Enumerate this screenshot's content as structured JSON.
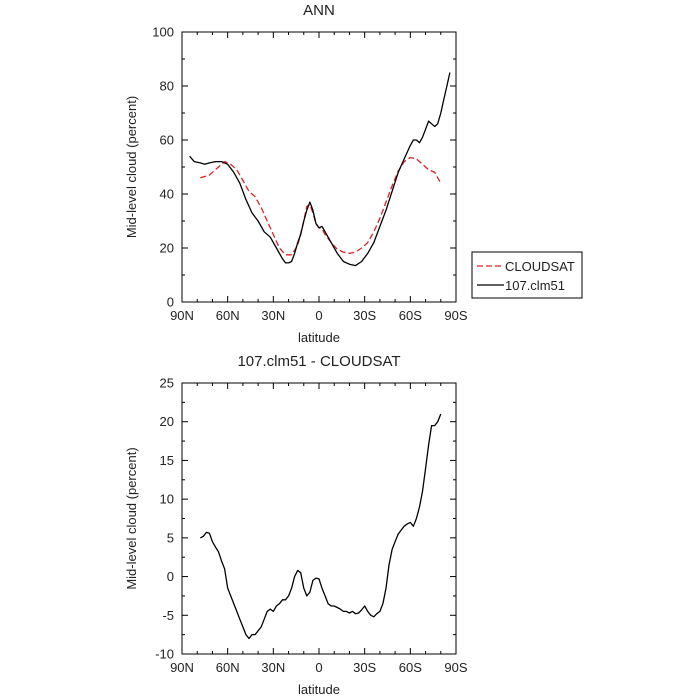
{
  "chart_data": [
    {
      "type": "line",
      "title": "ANN",
      "xlabel": "latitude",
      "ylabel": "Mid-level cloud (percent)",
      "xlim": [
        90,
        -90
      ],
      "ylim": [
        0,
        100
      ],
      "x_ticks": [
        90,
        60,
        30,
        0,
        -30,
        -60,
        -90
      ],
      "x_tick_labels": [
        "90N",
        "60N",
        "30N",
        "0",
        "30S",
        "60S",
        "90S"
      ],
      "y_ticks": [
        0,
        20,
        40,
        60,
        80,
        100
      ],
      "y_tick_labels": [
        "0",
        "20",
        "40",
        "60",
        "80",
        "100"
      ],
      "grid": false,
      "legend": {
        "placement": "right-outside",
        "entries": [
          "CLOUDSAT",
          "107.clm51"
        ]
      },
      "series": [
        {
          "name": "CLOUDSAT",
          "color": "#dd2222",
          "dash": "dashed",
          "x": [
            78,
            72,
            66,
            62,
            58,
            54,
            50,
            46,
            42,
            38,
            34,
            30,
            26,
            22,
            18,
            14,
            10,
            8,
            6,
            4,
            2,
            0,
            -2,
            -4,
            -8,
            -12,
            -16,
            -20,
            -24,
            -28,
            -32,
            -36,
            -40,
            -44,
            -48,
            -52,
            -56,
            -60,
            -64,
            -68,
            -72,
            -76,
            -80
          ],
          "y": [
            46,
            47,
            50,
            52,
            51,
            49,
            45,
            41,
            39,
            35,
            30,
            25,
            20,
            17.5,
            17.5,
            21,
            30,
            35.5,
            36,
            33,
            29,
            27.5,
            27,
            25,
            22,
            19.5,
            18.5,
            18,
            18.5,
            20,
            22,
            26,
            31,
            37,
            43,
            48.5,
            52,
            53.5,
            53,
            51,
            49,
            48,
            44
          ]
        },
        {
          "name": "107.clm51",
          "color": "#000000",
          "dash": "solid",
          "x": [
            85,
            82,
            78,
            75,
            72,
            68,
            64,
            60,
            56,
            52,
            48,
            44,
            40,
            36,
            32,
            28,
            24,
            22,
            20,
            18,
            16,
            14,
            12,
            10,
            8,
            6,
            4,
            2,
            0,
            -2,
            -4,
            -8,
            -12,
            -16,
            -20,
            -24,
            -28,
            -32,
            -36,
            -40,
            -44,
            -48,
            -52,
            -56,
            -60,
            -62,
            -64,
            -66,
            -68,
            -70,
            -72,
            -74,
            -76,
            -78,
            -80,
            -82,
            -84,
            -86
          ],
          "y": [
            54,
            52,
            51.5,
            51,
            51.5,
            52,
            52,
            51,
            48,
            44,
            38,
            33,
            30,
            26,
            24,
            20,
            16,
            14.5,
            14.5,
            15,
            18,
            22,
            25,
            30,
            34,
            37,
            34,
            29,
            27.5,
            28,
            26,
            22,
            18,
            15,
            14,
            13.5,
            15,
            18,
            22,
            28,
            34,
            41,
            48,
            53,
            58,
            60,
            60,
            59,
            61,
            64,
            67,
            66,
            65,
            66,
            70,
            75,
            80,
            85
          ]
        }
      ]
    },
    {
      "type": "line",
      "title": "107.clm51 - CLOUDSAT",
      "xlabel": "latitude",
      "ylabel": "Mid-level cloud (percent)",
      "xlim": [
        90,
        -90
      ],
      "ylim": [
        -10,
        25
      ],
      "x_ticks": [
        90,
        60,
        30,
        0,
        -30,
        -60,
        -90
      ],
      "x_tick_labels": [
        "90N",
        "60N",
        "30N",
        "0",
        "30S",
        "60S",
        "90S"
      ],
      "y_ticks": [
        -10,
        -5,
        0,
        5,
        10,
        15,
        20,
        25
      ],
      "y_tick_labels": [
        "-10",
        "-5",
        "0",
        "5",
        "10",
        "15",
        "20",
        "25"
      ],
      "grid": false,
      "series": [
        {
          "color": "#000000",
          "dash": "solid",
          "x": [
            78,
            76,
            74,
            72,
            70,
            68,
            66,
            64,
            62,
            60,
            58,
            56,
            54,
            52,
            50,
            48,
            46,
            44,
            42,
            40,
            38,
            36,
            34,
            32,
            30,
            28,
            26,
            24,
            22,
            20,
            18,
            16,
            14,
            12,
            10,
            8,
            6,
            4,
            2,
            0,
            -2,
            -4,
            -6,
            -8,
            -10,
            -12,
            -14,
            -16,
            -18,
            -20,
            -22,
            -24,
            -26,
            -28,
            -30,
            -32,
            -34,
            -36,
            -38,
            -40,
            -42,
            -44,
            -46,
            -48,
            -50,
            -52,
            -54,
            -56,
            -58,
            -60,
            -62,
            -64,
            -66,
            -68,
            -70,
            -72,
            -74,
            -76,
            -78,
            -80
          ],
          "y": [
            5,
            5.2,
            5.7,
            5.6,
            4.5,
            3.8,
            3.2,
            2,
            1,
            -1.5,
            -2.5,
            -3.5,
            -4.5,
            -5.5,
            -6.5,
            -7.5,
            -8,
            -7.5,
            -7.5,
            -7,
            -6.5,
            -5.5,
            -4.5,
            -4.2,
            -4.5,
            -3.8,
            -3.5,
            -3,
            -3,
            -2.5,
            -1.5,
            0,
            0.8,
            0.5,
            -1.5,
            -2.5,
            -2,
            -0.5,
            -0.2,
            -0.3,
            -1.5,
            -2.5,
            -3.5,
            -3.8,
            -3.8,
            -4,
            -4.2,
            -4.5,
            -4.5,
            -4.7,
            -4.5,
            -4.8,
            -4.7,
            -4.3,
            -3.8,
            -4.5,
            -5,
            -5.2,
            -4.8,
            -4.5,
            -3.5,
            -1.5,
            1.5,
            3.5,
            4.5,
            5.5,
            6,
            6.5,
            6.8,
            7,
            6.5,
            7.5,
            9,
            11,
            14,
            17,
            19.5,
            19.5,
            20,
            21
          ]
        }
      ]
    }
  ]
}
